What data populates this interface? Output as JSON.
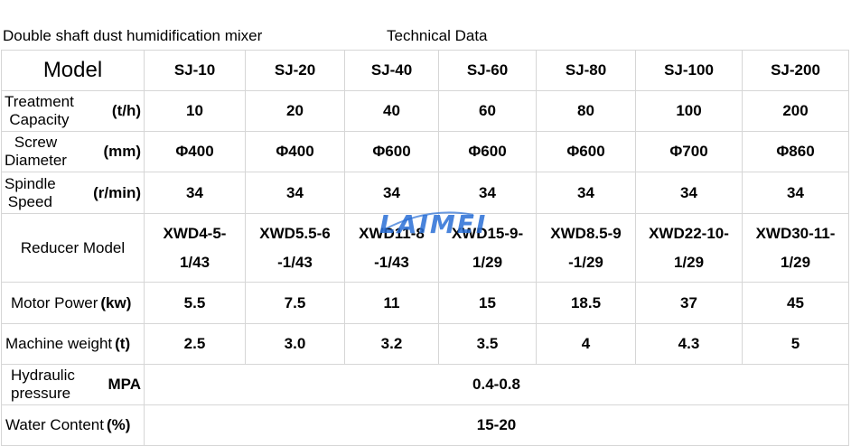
{
  "heading": {
    "doc_title": "Double shaft dust humidification mixer",
    "tech_data": "Technical Data"
  },
  "table": {
    "model_label": "Model",
    "models": [
      "SJ-10",
      "SJ-20",
      "SJ-40",
      "SJ-60",
      "SJ-80",
      "SJ-100",
      "SJ-200"
    ],
    "rows": {
      "capacity": {
        "label_line1": "Treatment",
        "label_line2": "Capacity",
        "unit": "(t/h)",
        "values": [
          "10",
          "20",
          "40",
          "60",
          "80",
          "100",
          "200"
        ]
      },
      "screw": {
        "label_line1": "Screw",
        "label_line2": "Diameter",
        "unit": "(mm)",
        "values": [
          "Φ400",
          "Φ400",
          "Φ600",
          "Φ600",
          "Φ600",
          "Φ700",
          "Φ860"
        ]
      },
      "spindle": {
        "label_line1": "Spindle",
        "label_line2": "Speed",
        "unit": "(r/min)",
        "values": [
          "34",
          "34",
          "34",
          "34",
          "34",
          "34",
          "34"
        ]
      },
      "reducer": {
        "label": "Reducer Model",
        "values_line1": [
          "XWD4-5-",
          "XWD5.5-6",
          "XWD11-8",
          "XWD15-9-",
          "XWD8.5-9",
          "XWD22-10-",
          "XWD30-11-"
        ],
        "values_line2": [
          "1/43",
          "-1/43",
          "-1/43",
          "1/29",
          "-1/29",
          "1/29",
          "1/29"
        ]
      },
      "motor": {
        "label": "Motor Power",
        "unit": "(kw)",
        "values": [
          "5.5",
          "7.5",
          "11",
          "15",
          "18.5",
          "37",
          "45"
        ]
      },
      "weight": {
        "label": "Machine weight",
        "unit": "(t)",
        "values": [
          "2.5",
          "3.0",
          "3.2",
          "3.5",
          "4",
          "4.3",
          "5"
        ]
      },
      "hydraulic": {
        "label_line1": "Hydraulic",
        "label_line2": "pressure",
        "unit": "MPA",
        "value": "0.4-0.8"
      },
      "water": {
        "label": "Water Content",
        "unit": "(%)",
        "value": "15-20"
      }
    }
  },
  "watermark": {
    "text": "LAIMEI",
    "color": "#2a6fd6"
  }
}
